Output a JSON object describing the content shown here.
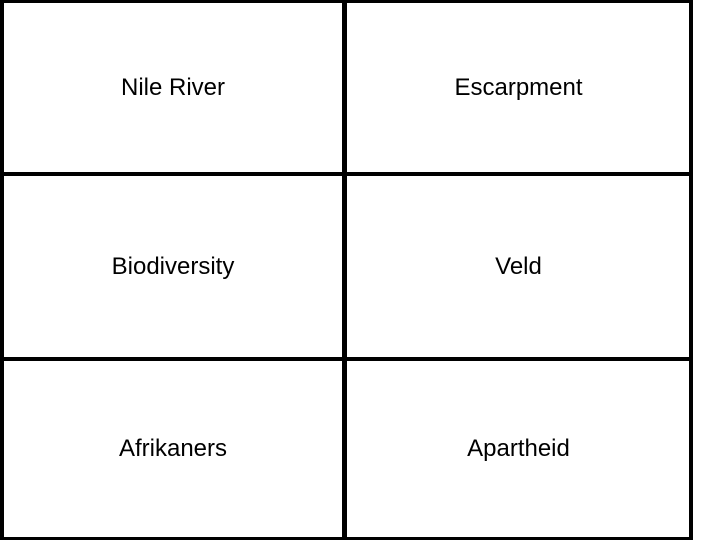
{
  "table": {
    "rows": [
      [
        "Nile River",
        "Escarpment"
      ],
      [
        "Biodiversity",
        "Veld"
      ],
      [
        "Afrikaners",
        "Apartheid"
      ]
    ]
  }
}
